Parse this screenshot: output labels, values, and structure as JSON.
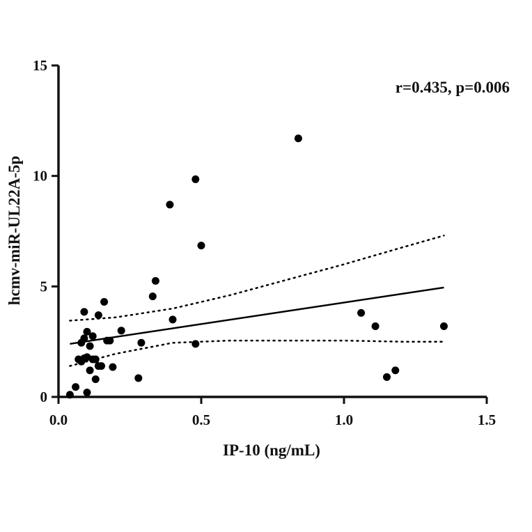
{
  "chart_data": {
    "type": "scatter",
    "xlabel": "IP-10 (ng/mL)",
    "ylabel": "hcmv-miR-UL22A-5p",
    "annotation": "r=0.435, p=0.006",
    "xlim": [
      0,
      1.5
    ],
    "ylim": [
      0,
      15
    ],
    "x_ticks": [
      0,
      0.5,
      1.0,
      1.5
    ],
    "x_tick_labels": [
      "0.0",
      "0.5",
      "1.0",
      "1.5"
    ],
    "y_ticks": [
      0,
      5,
      10,
      15
    ],
    "y_tick_labels": [
      "0",
      "5",
      "10",
      "15"
    ],
    "grid": false,
    "legend": "none",
    "points": [
      {
        "x": 0.04,
        "y": 0.1
      },
      {
        "x": 0.06,
        "y": 0.45
      },
      {
        "x": 0.1,
        "y": 0.2
      },
      {
        "x": 0.08,
        "y": 1.6
      },
      {
        "x": 0.09,
        "y": 1.75
      },
      {
        "x": 0.07,
        "y": 1.7
      },
      {
        "x": 0.1,
        "y": 1.8
      },
      {
        "x": 0.11,
        "y": 1.2
      },
      {
        "x": 0.12,
        "y": 1.7
      },
      {
        "x": 0.13,
        "y": 1.7
      },
      {
        "x": 0.14,
        "y": 1.4
      },
      {
        "x": 0.15,
        "y": 1.4
      },
      {
        "x": 0.13,
        "y": 0.8
      },
      {
        "x": 0.19,
        "y": 1.35
      },
      {
        "x": 0.08,
        "y": 2.45
      },
      {
        "x": 0.09,
        "y": 2.65
      },
      {
        "x": 0.11,
        "y": 2.3
      },
      {
        "x": 0.12,
        "y": 2.75
      },
      {
        "x": 0.1,
        "y": 2.95
      },
      {
        "x": 0.09,
        "y": 3.85
      },
      {
        "x": 0.14,
        "y": 3.7
      },
      {
        "x": 0.17,
        "y": 2.55
      },
      {
        "x": 0.18,
        "y": 2.55
      },
      {
        "x": 0.16,
        "y": 4.3
      },
      {
        "x": 0.22,
        "y": 3.0
      },
      {
        "x": 0.28,
        "y": 0.85
      },
      {
        "x": 0.29,
        "y": 2.45
      },
      {
        "x": 0.33,
        "y": 4.55
      },
      {
        "x": 0.34,
        "y": 5.25
      },
      {
        "x": 0.39,
        "y": 8.7
      },
      {
        "x": 0.4,
        "y": 3.5
      },
      {
        "x": 0.48,
        "y": 2.4
      },
      {
        "x": 0.48,
        "y": 9.85
      },
      {
        "x": 0.5,
        "y": 6.85
      },
      {
        "x": 0.84,
        "y": 11.7
      },
      {
        "x": 1.06,
        "y": 3.8
      },
      {
        "x": 1.11,
        "y": 3.2
      },
      {
        "x": 1.15,
        "y": 0.9
      },
      {
        "x": 1.18,
        "y": 1.2
      },
      {
        "x": 1.35,
        "y": 3.2
      }
    ],
    "regression": {
      "x": [
        0.04,
        1.35
      ],
      "y": [
        2.4,
        4.95
      ]
    },
    "ci_upper": {
      "x": [
        0.04,
        0.2,
        0.4,
        0.6,
        0.8,
        1.0,
        1.2,
        1.35
      ],
      "y": [
        3.45,
        3.6,
        4.0,
        4.6,
        5.3,
        6.0,
        6.75,
        7.3
      ]
    },
    "ci_lower": {
      "x": [
        0.04,
        0.2,
        0.4,
        0.6,
        0.8,
        1.0,
        1.2,
        1.35
      ],
      "y": [
        1.4,
        1.95,
        2.45,
        2.55,
        2.55,
        2.55,
        2.5,
        2.5
      ]
    }
  }
}
